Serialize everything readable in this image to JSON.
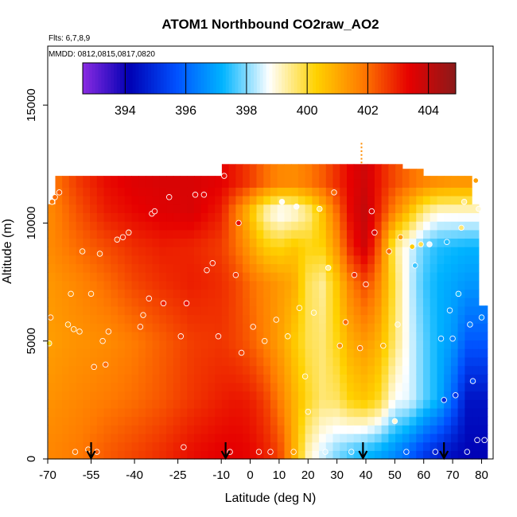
{
  "chart_data": {
    "type": "heatmap",
    "title": "ATOM1 Northbound CO2raw_AO2",
    "subtitle_flights": "Flts: 6,7,8,9",
    "subtitle_dates": "MMDD: 0812,0815,0817,0820",
    "xlabel": "Latitude (deg N)",
    "ylabel": "Altitude (m)",
    "xlim": [
      -70,
      84
    ],
    "ylim": [
      0,
      17500
    ],
    "x_ticks": [
      -70,
      -55,
      -40,
      -25,
      -10,
      0,
      10,
      20,
      30,
      40,
      50,
      60,
      70,
      80
    ],
    "y_ticks": [
      0,
      5000,
      10000,
      15000
    ],
    "colorbar": {
      "range": [
        392.6,
        404.9
      ],
      "ticks": [
        394,
        396,
        398,
        400,
        402,
        404
      ],
      "colors": [
        "#8a2be2",
        "#0000b3",
        "#0050ff",
        "#00b4ff",
        "#ffffff",
        "#ffd200",
        "#ff7a00",
        "#e60000",
        "#8b1a1a"
      ]
    },
    "value_grid": {
      "altitudes": [
        300,
        2500,
        5000,
        7500,
        9000,
        10500,
        11700
      ],
      "latitudes": [
        -70,
        -60,
        -50,
        -40,
        -30,
        -20,
        -10,
        -5,
        0,
        5,
        10,
        15,
        20,
        25,
        30,
        35,
        40,
        45,
        50,
        55,
        60,
        65,
        70,
        75
      ],
      "values": [
        [
          401.6,
          401.8,
          402.2,
          402.5,
          402.8,
          403.2,
          403.4,
          403.4,
          403.3,
          403.0,
          402.5,
          401.0,
          399.2,
          398.5,
          398.0,
          397.6,
          397.3,
          397.0,
          396.6,
          396.0,
          395.3,
          394.8,
          394.4,
          394.2
        ],
        [
          401.4,
          401.6,
          401.8,
          402.0,
          402.3,
          402.7,
          403.0,
          403.1,
          403.0,
          402.6,
          401.8,
          400.9,
          400.1,
          399.6,
          399.7,
          400.3,
          400.5,
          400.0,
          398.7,
          398.6,
          397.8,
          397.2,
          396.0,
          394.5
        ],
        [
          401.2,
          401.4,
          401.5,
          401.8,
          402.2,
          402.6,
          402.7,
          402.5,
          402.2,
          401.7,
          401.2,
          400.5,
          399.8,
          399.6,
          400.2,
          401.0,
          401.3,
          400.8,
          399.6,
          398.6,
          397.8,
          397.2,
          396.8,
          395.8
        ],
        [
          401.3,
          401.6,
          402.0,
          402.5,
          402.8,
          403.0,
          402.8,
          402.5,
          402.0,
          401.6,
          401.3,
          401.0,
          399.8,
          399.4,
          400.5,
          401.8,
          402.5,
          401.5,
          399.8,
          398.5,
          397.6,
          397.2,
          397.0,
          396.8
        ],
        [
          401.5,
          402.0,
          402.4,
          402.8,
          403.0,
          402.9,
          402.6,
          402.0,
          401.2,
          400.4,
          400.2,
          400.5,
          400.2,
          400.3,
          401.4,
          403.0,
          403.8,
          402.0,
          399.5,
          398.6,
          397.8,
          397.4,
          397.3,
          397.2
        ],
        [
          401.5,
          402.3,
          403.0,
          403.3,
          403.5,
          403.6,
          403.0,
          401.8,
          400.6,
          399.2,
          398.6,
          398.8,
          399.4,
          400.6,
          402.0,
          403.4,
          404.0,
          402.8,
          401.6,
          400.6,
          399.5,
          399.0,
          399.0,
          399.0
        ],
        [
          401.6,
          402.6,
          403.2,
          403.5,
          403.6,
          403.6,
          403.4,
          403.0,
          402.6,
          402.0,
          401.6,
          401.5,
          401.8,
          402.2,
          402.8,
          403.4,
          403.8,
          403.0,
          402.4,
          402.0,
          401.6,
          401.4,
          401.3,
          401.3
        ]
      ]
    },
    "sample_points": [
      [
        -69.5,
        4900,
        400.2
      ],
      [
        -69,
        6000,
        401.6
      ],
      [
        -68.5,
        10900,
        401.8
      ],
      [
        -67.5,
        11100,
        402.0
      ],
      [
        -66,
        11300,
        402.2
      ],
      [
        -63,
        5700,
        401.2
      ],
      [
        -62,
        7000,
        401.4
      ],
      [
        -61,
        5500,
        401.3
      ],
      [
        -60.5,
        300,
        401.8
      ],
      [
        -59,
        5400,
        401.4
      ],
      [
        -58,
        8800,
        401.8
      ],
      [
        -56,
        400,
        401.8
      ],
      [
        -55,
        7000,
        401.6
      ],
      [
        -54,
        3900,
        401.8
      ],
      [
        -53,
        300,
        402.2
      ],
      [
        -52,
        8700,
        402.0
      ],
      [
        -51,
        5000,
        401.6
      ],
      [
        -50,
        4000,
        402.0
      ],
      [
        -49,
        5400,
        401.7
      ],
      [
        -46,
        9300,
        402.4
      ],
      [
        -44,
        9400,
        402.8
      ],
      [
        -42,
        9600,
        402.6
      ],
      [
        -38,
        5600,
        402.2
      ],
      [
        -37,
        6100,
        402.1
      ],
      [
        -35,
        6800,
        402.6
      ],
      [
        -34,
        10400,
        403.2
      ],
      [
        -33,
        10500,
        403.3
      ],
      [
        -30,
        6600,
        402.9
      ],
      [
        -28,
        11100,
        403.4
      ],
      [
        -24,
        5200,
        402.6
      ],
      [
        -23,
        500,
        403.0
      ],
      [
        -22,
        6600,
        403.1
      ],
      [
        -19,
        11200,
        403.3
      ],
      [
        -16,
        11200,
        403.4
      ],
      [
        -15,
        8000,
        402.8
      ],
      [
        -13,
        8300,
        402.8
      ],
      [
        -11,
        5200,
        402.7
      ],
      [
        -9,
        12000,
        403.2
      ],
      [
        -7,
        300,
        403.4
      ],
      [
        -5,
        7800,
        402.7
      ],
      [
        -4,
        10000,
        403.2
      ],
      [
        -3,
        4500,
        402.5
      ],
      [
        1,
        5600,
        402.0
      ],
      [
        3,
        300,
        403.0
      ],
      [
        5,
        5000,
        401.6
      ],
      [
        7,
        300,
        403.0
      ],
      [
        9,
        5900,
        401.4
      ],
      [
        11,
        10900,
        398.8
      ],
      [
        13,
        5200,
        400.7
      ],
      [
        15,
        300,
        401.2
      ],
      [
        16,
        10700,
        398.8
      ],
      [
        17,
        6400,
        400.5
      ],
      [
        19,
        3500,
        400.0
      ],
      [
        20,
        2000,
        399.8
      ],
      [
        22,
        6200,
        399.6
      ],
      [
        24,
        10600,
        399.6
      ],
      [
        26,
        300,
        398.5
      ],
      [
        27,
        8100,
        399.4
      ],
      [
        29,
        11300,
        402.0
      ],
      [
        31,
        4800,
        401.4
      ],
      [
        33,
        5800,
        402.0
      ],
      [
        35,
        300,
        397.8
      ],
      [
        36,
        7800,
        402.8
      ],
      [
        38,
        4700,
        401.8
      ],
      [
        40,
        7400,
        402.6
      ],
      [
        42,
        10500,
        403.6
      ],
      [
        43,
        9600,
        403.6
      ],
      [
        46,
        4800,
        400.8
      ],
      [
        48,
        8800,
        402.0
      ],
      [
        50,
        1600,
        399.0
      ],
      [
        51,
        5700,
        399.2
      ],
      [
        52,
        9400,
        401.2
      ],
      [
        54,
        300,
        396.0
      ],
      [
        56,
        9000,
        400.4
      ],
      [
        57,
        8200,
        397.6
      ],
      [
        59,
        9100,
        399.8
      ],
      [
        62,
        9100,
        398.6
      ],
      [
        64,
        300,
        394.8
      ],
      [
        66,
        5100,
        396.8
      ],
      [
        67,
        2500,
        395.0
      ],
      [
        68,
        9200,
        397.4
      ],
      [
        69,
        6300,
        396.8
      ],
      [
        70,
        5100,
        396.4
      ],
      [
        71,
        2700,
        395.2
      ],
      [
        72,
        7000,
        397.2
      ],
      [
        73,
        9800,
        399.6
      ],
      [
        74,
        10900,
        399.4
      ],
      [
        75,
        300,
        394.4
      ],
      [
        76,
        5700,
        396.4
      ],
      [
        77,
        3300,
        395.6
      ],
      [
        78,
        11800,
        401.2
      ],
      [
        78.5,
        800,
        394.2
      ],
      [
        79,
        10600,
        399.0
      ],
      [
        80,
        6000,
        396.6
      ],
      [
        81,
        800,
        394.2
      ]
    ],
    "arrow_latitudes": [
      -55,
      -8.5,
      39,
      67
    ]
  }
}
